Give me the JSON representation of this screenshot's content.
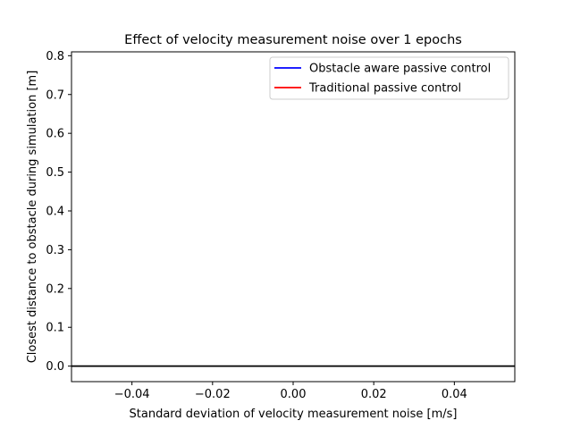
{
  "chart_data": {
    "type": "line",
    "title": "Effect of velocity measurement noise over 1 epochs",
    "xlabel": "Standard deviation of velocity measurement noise [m/s]",
    "ylabel": "Closest distance to obstacle during simulation [m]",
    "xlim": [
      -0.055,
      0.055
    ],
    "ylim": [
      -0.04,
      0.81
    ],
    "x_ticks": [
      -0.04,
      -0.02,
      0.0,
      0.02,
      0.04
    ],
    "x_tick_labels": [
      "−0.04",
      "−0.02",
      "0.00",
      "0.02",
      "0.04"
    ],
    "y_ticks": [
      0.0,
      0.1,
      0.2,
      0.3,
      0.4,
      0.5,
      0.6,
      0.7,
      0.8
    ],
    "y_tick_labels": [
      "0.0",
      "0.1",
      "0.2",
      "0.3",
      "0.4",
      "0.5",
      "0.6",
      "0.7",
      "0.8"
    ],
    "grid": false,
    "legend_position": "upper-right",
    "series": [
      {
        "name": "Obstacle aware passive control",
        "color": "#0000ff",
        "x": [],
        "y": []
      },
      {
        "name": "Traditional passive control",
        "color": "#ff0000",
        "x": [],
        "y": []
      }
    ],
    "reference_lines": [
      {
        "orientation": "horizontal",
        "y": 0.0,
        "color": "#000000"
      }
    ]
  }
}
